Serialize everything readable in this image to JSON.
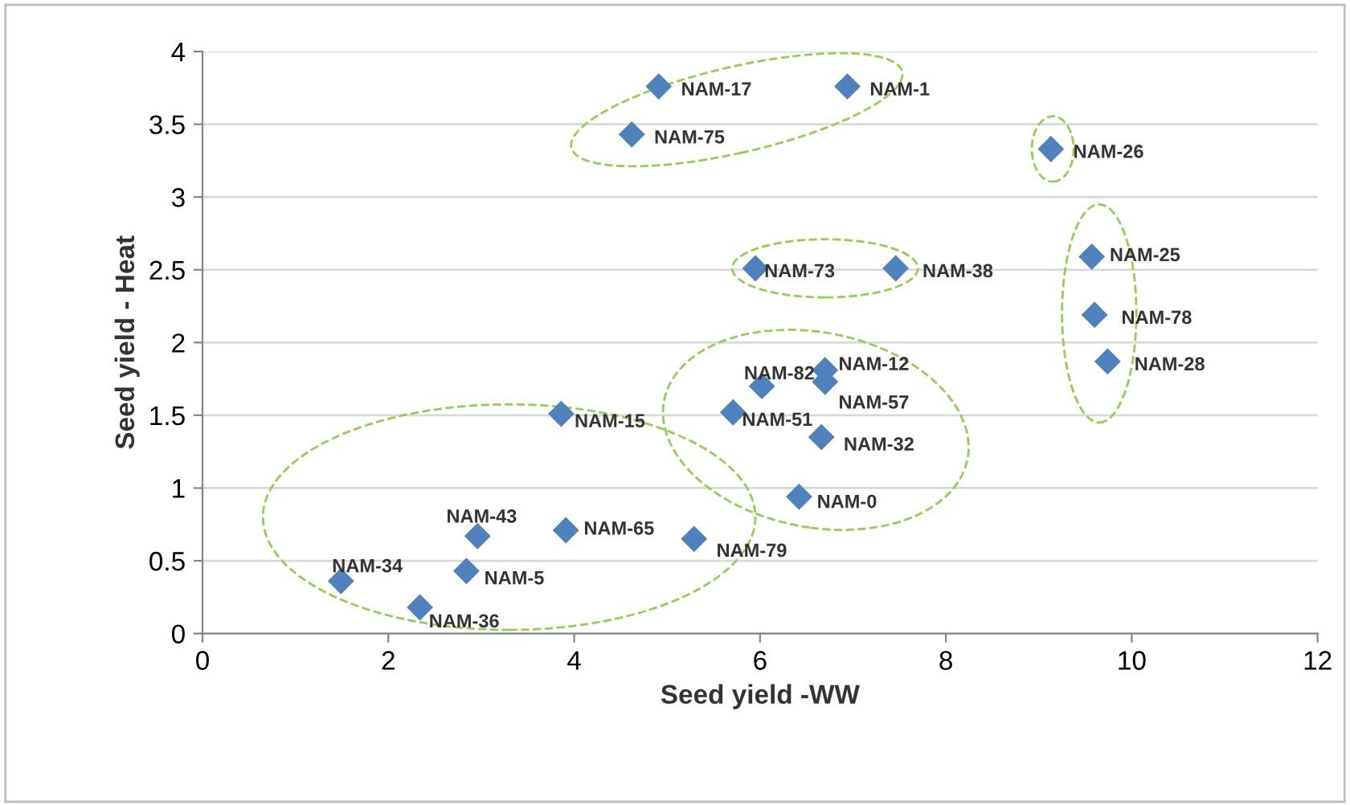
{
  "chart_data": {
    "type": "scatter",
    "xlabel": "Seed yield -WW",
    "ylabel": "Seed yield - Heat",
    "x": [
      4.91,
      6.94,
      4.62,
      9.13,
      5.95,
      7.46,
      9.57,
      9.6,
      9.74,
      6.7,
      6.7,
      6.02,
      3.86,
      5.71,
      6.66,
      6.42,
      2.96,
      3.91,
      5.29,
      2.84,
      1.49,
      2.34
    ],
    "values": [
      3.76,
      3.76,
      3.43,
      3.33,
      2.51,
      2.51,
      2.59,
      2.19,
      1.87,
      1.81,
      1.73,
      1.7,
      1.51,
      1.52,
      1.35,
      0.94,
      0.67,
      0.71,
      0.65,
      0.43,
      0.36,
      0.18
    ],
    "color": "#4f81bd",
    "marker": "diamond",
    "annotations": [
      {
        "text": "NAM-17",
        "x": 4.91,
        "y": 3.76
      },
      {
        "text": "NAM-1",
        "x": 6.94,
        "y": 3.76
      },
      {
        "text": "NAM-75",
        "x": 4.62,
        "y": 3.43
      },
      {
        "text": "NAM-26",
        "x": 9.13,
        "y": 3.33
      },
      {
        "text": "NAM-73",
        "x": 5.95,
        "y": 2.51
      },
      {
        "text": "NAM-38",
        "x": 7.46,
        "y": 2.51
      },
      {
        "text": "NAM-25",
        "x": 9.57,
        "y": 2.59
      },
      {
        "text": "NAM-78",
        "x": 9.6,
        "y": 2.19
      },
      {
        "text": "NAM-28",
        "x": 9.74,
        "y": 1.87
      },
      {
        "text": "NAM-12",
        "x": 6.7,
        "y": 1.81
      },
      {
        "text": "NAM-57",
        "x": 6.7,
        "y": 1.73
      },
      {
        "text": "NAM-82",
        "x": 6.02,
        "y": 1.7
      },
      {
        "text": "NAM-15",
        "x": 3.86,
        "y": 1.51
      },
      {
        "text": "NAM-51",
        "x": 5.71,
        "y": 1.52
      },
      {
        "text": "NAM-32",
        "x": 6.66,
        "y": 1.35
      },
      {
        "text": "NAM-0",
        "x": 6.42,
        "y": 0.94
      },
      {
        "text": "NAM-43",
        "x": 2.96,
        "y": 0.67
      },
      {
        "text": "NAM-65",
        "x": 3.91,
        "y": 0.71
      },
      {
        "text": "NAM-79",
        "x": 5.29,
        "y": 0.65
      },
      {
        "text": "NAM-5",
        "x": 2.84,
        "y": 0.43
      },
      {
        "text": "NAM-34",
        "x": 1.49,
        "y": 0.36
      },
      {
        "text": "NAM-36",
        "x": 2.34,
        "y": 0.18
      }
    ],
    "xlim": [
      0,
      12
    ],
    "xticks": [
      0,
      2,
      4,
      6,
      8,
      10,
      12
    ],
    "ylim": [
      0,
      4
    ],
    "yticks": [
      0,
      0.5,
      1,
      1.5,
      2,
      2.5,
      3,
      3.5,
      4
    ],
    "grid": "y"
  }
}
